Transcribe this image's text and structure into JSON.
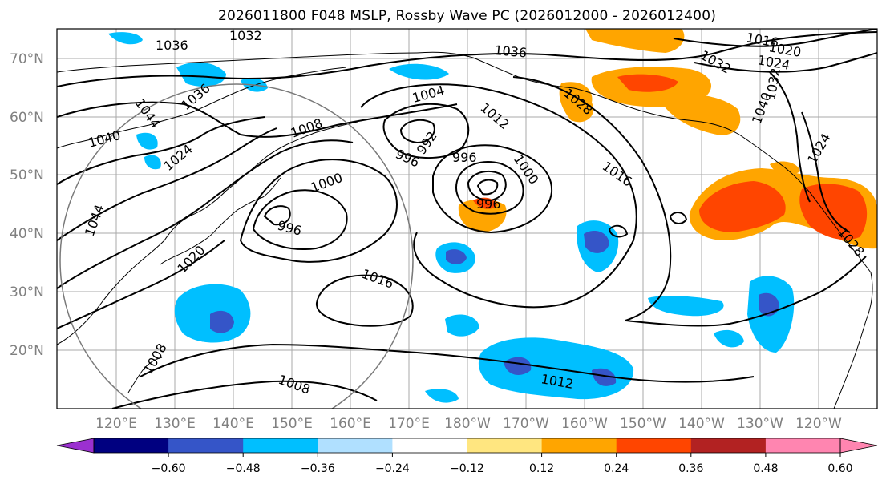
{
  "title": "2026011800 F048 MSLP, Rossby Wave PC (2026012000 - 2026012400)",
  "map": {
    "lat_labels": [
      "70°N",
      "60°N",
      "50°N",
      "40°N",
      "30°N",
      "20°N"
    ],
    "lon_labels": [
      "120°E",
      "130°E",
      "140°E",
      "150°E",
      "160°E",
      "170°E",
      "180°W",
      "170°W",
      "160°W",
      "150°W",
      "140°W",
      "130°W",
      "120°W"
    ],
    "isobar_labels": [
      "1036",
      "1032",
      "1044",
      "1036",
      "1040",
      "1024",
      "1044",
      "1020",
      "1008",
      "1000",
      "996",
      "1004",
      "996",
      "992",
      "1012",
      "996",
      "1000",
      "996",
      "1016",
      "1016",
      "1008",
      "1008",
      "1012",
      "1036",
      "1016",
      "1020",
      "1024",
      "1032",
      "1028",
      "1040",
      "1032",
      "1024",
      "1028"
    ]
  },
  "colorbar": {
    "ticks": [
      "−0.60",
      "−0.48",
      "−0.36",
      "−0.24",
      "−0.12",
      "0.12",
      "0.24",
      "0.36",
      "0.48",
      "0.60"
    ],
    "colors": [
      "#9b30d0",
      "#000080",
      "#3555c8",
      "#00bfff",
      "#b0e0ff",
      "#ffffff",
      "#ffe680",
      "#ffa500",
      "#ff4500",
      "#b22222",
      "#ff85b0",
      "#ff85b0"
    ]
  }
}
